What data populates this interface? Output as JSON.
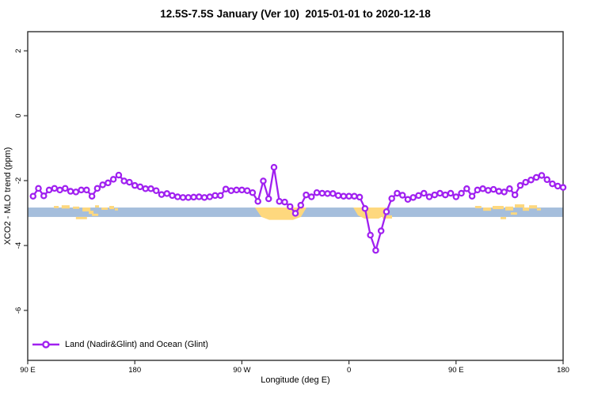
{
  "title": "12.5S-7.5S January (Ver 10)  2015-01-01 to 2020-12-18",
  "chart_data": {
    "type": "line",
    "title": "12.5S-7.5S January (Ver 10)  2015-01-01 to 2020-12-18",
    "xlabel": "Longitude (deg E)",
    "ylabel": "XCO2 - MLO trend (ppm)",
    "xlim": [
      90,
      540
    ],
    "ylim": [
      -7.54,
      2.59
    ],
    "grid": false,
    "x_ticks": {
      "values": [
        90,
        180,
        270,
        360,
        450,
        540
      ],
      "labels": [
        "90 E",
        "180",
        "90 W",
        "0",
        "90 E",
        "180"
      ]
    },
    "y_ticks": {
      "values": [
        2,
        0,
        -2,
        -4,
        -6
      ],
      "labels": [
        "2",
        "0",
        "-2",
        "-4",
        "-6"
      ]
    },
    "legend": {
      "position": "bottom-left"
    },
    "series": [
      {
        "name": "Land (Nadir&Glint) and Ocean (Glint)",
        "color": "#A020F0",
        "marker": "open-circle",
        "x": [
          94.5,
          99,
          103.5,
          108,
          112.5,
          117,
          121.5,
          126,
          130.5,
          135,
          139.5,
          144,
          148.5,
          153,
          157.5,
          162,
          166.5,
          171,
          175.5,
          180,
          184.5,
          189,
          193.5,
          198,
          202.5,
          207,
          211.5,
          216,
          220.5,
          225,
          229.5,
          234,
          238.5,
          243,
          247.5,
          252,
          256.5,
          261,
          265.5,
          270,
          274.5,
          279,
          283.5,
          288,
          292.5,
          297,
          301.5,
          306,
          310.5,
          315,
          319.5,
          324,
          328.5,
          333,
          337.5,
          342,
          346.5,
          351,
          355.5,
          360,
          364.5,
          369,
          373.5,
          378,
          382.5,
          387,
          391.5,
          396,
          400.5,
          405,
          409.5,
          414,
          418.5,
          423,
          427.5,
          432,
          436.5,
          441,
          445.5,
          450,
          454.5,
          459,
          463.5,
          468,
          472.5,
          477,
          481.5,
          486,
          490.5,
          495,
          499.5,
          504,
          508.5,
          513,
          517.5,
          522,
          526.5,
          531,
          535.5,
          540
        ],
        "values": [
          -2.48,
          -2.24,
          -2.47,
          -2.29,
          -2.24,
          -2.29,
          -2.24,
          -2.33,
          -2.35,
          -2.29,
          -2.29,
          -2.48,
          -2.24,
          -2.13,
          -2.07,
          -1.96,
          -1.83,
          -2.01,
          -2.05,
          -2.15,
          -2.19,
          -2.25,
          -2.25,
          -2.31,
          -2.43,
          -2.4,
          -2.46,
          -2.5,
          -2.52,
          -2.52,
          -2.51,
          -2.5,
          -2.52,
          -2.5,
          -2.46,
          -2.46,
          -2.26,
          -2.31,
          -2.29,
          -2.29,
          -2.31,
          -2.37,
          -2.64,
          -2.01,
          -2.56,
          -1.59,
          -2.64,
          -2.66,
          -2.8,
          -3.01,
          -2.76,
          -2.44,
          -2.5,
          -2.37,
          -2.39,
          -2.4,
          -2.4,
          -2.46,
          -2.48,
          -2.48,
          -2.48,
          -2.51,
          -2.86,
          -3.68,
          -4.15,
          -3.55,
          -2.96,
          -2.55,
          -2.39,
          -2.45,
          -2.58,
          -2.52,
          -2.46,
          -2.39,
          -2.5,
          -2.44,
          -2.39,
          -2.44,
          -2.39,
          -2.5,
          -2.39,
          -2.25,
          -2.48,
          -2.29,
          -2.25,
          -2.3,
          -2.27,
          -2.33,
          -2.35,
          -2.25,
          -2.44,
          -2.15,
          -2.05,
          -1.98,
          -1.9,
          -1.84,
          -1.97,
          -2.1,
          -2.17,
          -2.21
        ]
      }
    ],
    "reference_band": {
      "y_top": -2.83,
      "y_bottom": -3.12,
      "color": "#A5BEDC"
    },
    "land_overlay": {
      "color": "#FED87E",
      "polygons": [
        [
          [
            281,
            -2.83
          ],
          [
            324.3,
            -2.83
          ],
          [
            319.6,
            -3.12
          ],
          [
            313,
            -3.21
          ],
          [
            293,
            -3.21
          ],
          [
            286.4,
            -3.12
          ]
        ],
        [
          [
            363.6,
            -2.83
          ],
          [
            390.9,
            -2.83
          ],
          [
            390.2,
            -3.07
          ],
          [
            384.9,
            -3.17
          ],
          [
            372.9,
            -3.17
          ],
          [
            367.6,
            -3.07
          ]
        ]
      ],
      "specks": [
        [
          112,
          4,
          -2.78,
          0.07
        ],
        [
          118.5,
          6.7,
          -2.76,
          0.1
        ],
        [
          128,
          5.3,
          -2.8,
          0.07
        ],
        [
          130.5,
          9.3,
          -3.12,
          0.07
        ],
        [
          136,
          6.7,
          -2.83,
          0.12
        ],
        [
          141.3,
          4,
          -2.93,
          0.1
        ],
        [
          144,
          5.3,
          -3.02,
          0.07
        ],
        [
          146.6,
          3.3,
          -2.76,
          0.07
        ],
        [
          152,
          5.3,
          -2.83,
          0.07
        ],
        [
          158.6,
          4,
          -2.78,
          0.1
        ],
        [
          163.2,
          2.7,
          -2.85,
          0.07
        ],
        [
          388.2,
          8,
          -3.07,
          0.1
        ],
        [
          466,
          5.3,
          -2.78,
          0.07
        ],
        [
          472.8,
          6.7,
          -2.83,
          0.1
        ],
        [
          480.7,
          9.3,
          -2.78,
          0.1
        ],
        [
          487.4,
          4.7,
          -3.12,
          0.07
        ],
        [
          491.4,
          6.7,
          -2.8,
          0.12
        ],
        [
          496,
          5.3,
          -2.98,
          0.07
        ],
        [
          499.4,
          8,
          -2.73,
          0.1
        ],
        [
          506.1,
          5.3,
          -2.83,
          0.1
        ],
        [
          511.4,
          6.7,
          -2.76,
          0.1
        ],
        [
          518,
          3.3,
          -2.85,
          0.07
        ]
      ]
    }
  }
}
